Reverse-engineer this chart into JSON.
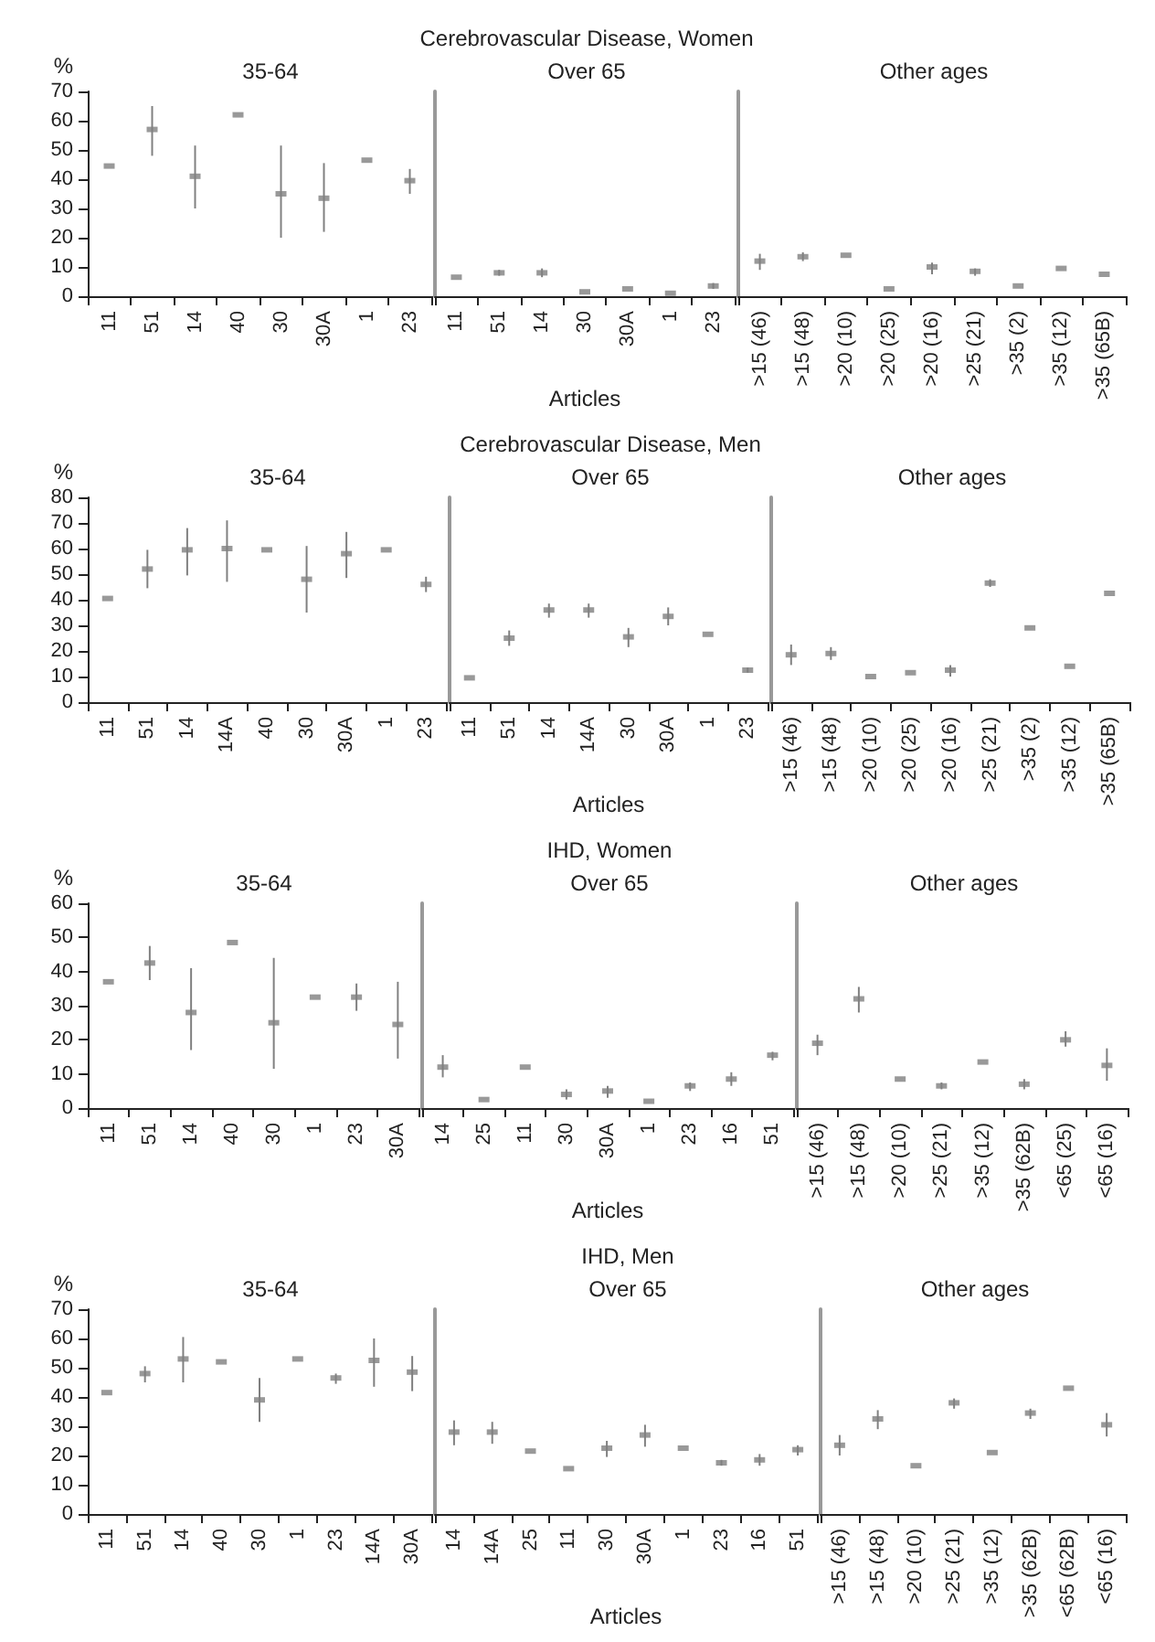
{
  "chart_data": [
    {
      "type": "scatter",
      "subtitle": "35-64",
      "ylabel": "%",
      "color": "#808080",
      "marker": "square",
      "ylim": [
        0,
        70
      ],
      "yticks": [
        0,
        10,
        20,
        30,
        40,
        50,
        60,
        70
      ],
      "categories": [
        "11",
        "51",
        "14",
        "40",
        "30",
        "30A",
        "1",
        "23"
      ],
      "values": [
        44.5,
        57,
        41,
        62,
        35,
        33.5,
        46.5,
        39.5
      ],
      "errors": [
        null,
        [
          48,
          65
        ],
        [
          30,
          51.5
        ],
        null,
        [
          20,
          51.5
        ],
        [
          22,
          45.5
        ],
        null,
        [
          35,
          43.5
        ]
      ]
    },
    {
      "type": "scatter",
      "title": "Cerebrovascular Disease, Women",
      "subtitle": "Over 65",
      "xlabel": "Articles",
      "color": "#808080",
      "marker": "square",
      "tick_labels": "x",
      "ylim": [
        0,
        70
      ],
      "yticks": [
        0,
        10,
        20,
        30,
        40,
        50,
        60,
        70
      ],
      "categories": [
        "11",
        "51",
        "14",
        "30",
        "30A",
        "1",
        "23"
      ],
      "values": [
        6.5,
        8,
        8,
        1.5,
        2.5,
        1,
        3.5
      ],
      "errors": [
        null,
        [
          7,
          9
        ],
        [
          6.5,
          9.5
        ],
        null,
        null,
        null,
        [
          2.5,
          4.5
        ]
      ]
    },
    {
      "type": "scatter",
      "subtitle": "Other ages",
      "color": "#808080",
      "marker": "square",
      "tick_labels": "x",
      "ylim": [
        0,
        70
      ],
      "yticks": [
        0,
        10,
        20,
        30,
        40,
        50,
        60,
        70
      ],
      "categories": [
        ">15 (46)",
        ">15 (48)",
        ">20 (10)",
        ">20 (25)",
        ">20 (16)",
        ">25 (21)",
        ">35 (2)",
        ">35 (12)",
        ">35 (65B)"
      ],
      "values": [
        12,
        13.5,
        14,
        2.5,
        10,
        8.5,
        3.5,
        9.5,
        7.5
      ],
      "errors": [
        [
          9,
          14.5
        ],
        [
          12,
          15
        ],
        null,
        null,
        [
          7.5,
          11.5
        ],
        [
          7,
          9.5
        ],
        null,
        null,
        null
      ]
    },
    {
      "type": "scatter",
      "subtitle": "35-64",
      "ylabel": "%",
      "color": "#808080",
      "marker": "square",
      "ylim": [
        0,
        80
      ],
      "yticks": [
        0,
        10,
        20,
        30,
        40,
        50,
        60,
        70,
        80
      ],
      "categories": [
        "11",
        "51",
        "14",
        "14A",
        "40",
        "30",
        "30A",
        "1",
        "23"
      ],
      "values": [
        40.5,
        52,
        59.5,
        60,
        59.5,
        48,
        58,
        59.5,
        46
      ],
      "errors": [
        null,
        [
          44.5,
          59.5
        ],
        [
          49.5,
          68
        ],
        [
          47,
          71
        ],
        null,
        [
          35,
          61
        ],
        [
          48.5,
          66.5
        ],
        null,
        [
          43,
          49
        ]
      ]
    },
    {
      "type": "scatter",
      "title": "Cerebrovascular Disease, Men",
      "subtitle": "Over 65",
      "xlabel": "Articles",
      "color": "#808080",
      "marker": "square",
      "tick_labels": "x",
      "ylim": [
        0,
        80
      ],
      "yticks": [
        0,
        10,
        20,
        30,
        40,
        50,
        60,
        70,
        80
      ],
      "categories": [
        "11",
        "51",
        "14",
        "14A",
        "30",
        "30A",
        "1",
        "23"
      ],
      "values": [
        9.5,
        25,
        36,
        36,
        25.5,
        33.5,
        26.5,
        12.5
      ],
      "errors": [
        null,
        [
          22,
          28
        ],
        [
          33,
          38.5
        ],
        [
          33,
          38.5
        ],
        [
          21.5,
          29
        ],
        [
          30,
          37
        ],
        null,
        [
          11.5,
          13.5
        ]
      ]
    },
    {
      "type": "scatter",
      "subtitle": "Other ages",
      "color": "#808080",
      "marker": "square",
      "tick_labels": "x",
      "ylim": [
        0,
        80
      ],
      "yticks": [
        0,
        10,
        20,
        30,
        40,
        50,
        60,
        70,
        80
      ],
      "categories": [
        ">15 (46)",
        ">15 (48)",
        ">20 (10)",
        ">20 (25)",
        ">20 (16)",
        ">25 (21)",
        ">35 (2)",
        ">35 (12)",
        ">35 (65B)"
      ],
      "values": [
        18.5,
        19,
        10,
        11.5,
        12.5,
        46.5,
        29,
        14,
        42.5
      ],
      "errors": [
        [
          14.5,
          22.5
        ],
        [
          16.5,
          21.5
        ],
        null,
        null,
        [
          10,
          14.5
        ],
        [
          45,
          48
        ],
        null,
        null,
        null
      ]
    },
    {
      "type": "scatter",
      "subtitle": "35-64",
      "ylabel": "%",
      "color": "#808080",
      "marker": "square",
      "ylim": [
        0,
        60
      ],
      "yticks": [
        0,
        10,
        20,
        30,
        40,
        50,
        60
      ],
      "categories": [
        "11",
        "51",
        "14",
        "40",
        "30",
        "1",
        "23",
        "30A"
      ],
      "values": [
        37,
        42.5,
        28,
        48.5,
        25,
        32.5,
        32.5,
        24.5
      ],
      "errors": [
        null,
        [
          37.5,
          47.5
        ],
        [
          17,
          41
        ],
        null,
        [
          11.5,
          44
        ],
        null,
        [
          28.5,
          36.5
        ],
        [
          14.5,
          37
        ]
      ]
    },
    {
      "type": "scatter",
      "title": "IHD, Women",
      "subtitle": "Over 65",
      "xlabel": "Articles",
      "color": "#808080",
      "marker": "square",
      "tick_labels": "x",
      "ylim": [
        0,
        60
      ],
      "yticks": [
        0,
        10,
        20,
        30,
        40,
        50,
        60
      ],
      "categories": [
        "14",
        "25",
        "11",
        "30",
        "30A",
        "1",
        "23",
        "16",
        "51"
      ],
      "values": [
        12,
        2.5,
        12,
        4,
        5,
        2,
        6.5,
        8.5,
        15.5
      ],
      "errors": [
        [
          9,
          15.5
        ],
        null,
        null,
        [
          2.5,
          5.5
        ],
        [
          3,
          6.5
        ],
        null,
        [
          5,
          7.5
        ],
        [
          6.5,
          10.5
        ],
        [
          14,
          16.5
        ]
      ]
    },
    {
      "type": "scatter",
      "subtitle": "Other ages",
      "color": "#808080",
      "marker": "square",
      "tick_labels": "x",
      "ylim": [
        0,
        60
      ],
      "yticks": [
        0,
        10,
        20,
        30,
        40,
        50,
        60
      ],
      "categories": [
        ">15 (46)",
        ">15 (48)",
        ">20 (10)",
        ">25 (21)",
        ">35 (12)",
        ">35 (62B)",
        "<65 (25)",
        "<65 (16)"
      ],
      "values": [
        19,
        32,
        8.5,
        6.5,
        13.5,
        7,
        20,
        12.5
      ],
      "errors": [
        [
          15.5,
          21.5
        ],
        [
          28,
          35.5
        ],
        null,
        [
          5.5,
          7.5
        ],
        null,
        [
          5.5,
          8.5
        ],
        [
          18,
          22.5
        ],
        [
          8,
          17.5
        ]
      ]
    },
    {
      "type": "scatter",
      "subtitle": "35-64",
      "ylabel": "%",
      "color": "#808080",
      "marker": "square",
      "ylim": [
        0,
        70
      ],
      "yticks": [
        0,
        10,
        20,
        30,
        40,
        50,
        60,
        70
      ],
      "categories": [
        "11",
        "51",
        "14",
        "40",
        "30",
        "1",
        "23",
        "14A",
        "30A"
      ],
      "values": [
        41.5,
        48,
        53,
        52,
        39,
        53,
        46.5,
        52.5,
        48.5
      ],
      "errors": [
        null,
        [
          45,
          50.5
        ],
        [
          45,
          60.5
        ],
        null,
        [
          31.5,
          46.5
        ],
        null,
        [
          44.5,
          48
        ],
        [
          43.5,
          60
        ],
        [
          42,
          54
        ]
      ]
    },
    {
      "type": "scatter",
      "title": "IHD, Men",
      "subtitle": "Over 65",
      "xlabel": "Articles",
      "color": "#808080",
      "marker": "square",
      "tick_labels": "x",
      "ylim": [
        0,
        70
      ],
      "yticks": [
        0,
        10,
        20,
        30,
        40,
        50,
        60,
        70
      ],
      "categories": [
        "14",
        "14A",
        "25",
        "11",
        "30",
        "30A",
        "1",
        "23",
        "16",
        "51"
      ],
      "values": [
        28,
        28,
        21.5,
        15.5,
        22.5,
        27,
        22.5,
        17.5,
        18.5,
        22
      ],
      "errors": [
        [
          23.5,
          32
        ],
        [
          24,
          31.5
        ],
        null,
        null,
        [
          19.5,
          25
        ],
        [
          23,
          30.5
        ],
        null,
        [
          16.5,
          18.5
        ],
        [
          16.5,
          20.5
        ],
        [
          20,
          23.5
        ]
      ]
    },
    {
      "type": "scatter",
      "subtitle": "Other ages",
      "color": "#808080",
      "marker": "square",
      "tick_labels": "x",
      "ylim": [
        0,
        70
      ],
      "yticks": [
        0,
        10,
        20,
        30,
        40,
        50,
        60,
        70
      ],
      "categories": [
        ">15 (46)",
        ">15 (48)",
        ">20 (10)",
        ">25 (21)",
        ">35 (12)",
        ">35 (62B)",
        "<65 (62B)",
        "<65 (16)"
      ],
      "values": [
        23.5,
        32.5,
        16.5,
        38,
        21,
        34.5,
        43,
        30.5
      ],
      "errors": [
        [
          20,
          27
        ],
        [
          29,
          35.5
        ],
        null,
        [
          36,
          39.5
        ],
        null,
        [
          32.5,
          36
        ],
        null,
        [
          26.5,
          34.5
        ]
      ]
    }
  ]
}
